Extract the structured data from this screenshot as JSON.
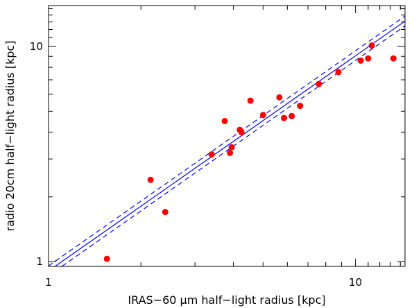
{
  "chart_data": {
    "type": "scatter",
    "title": "",
    "xlabel": "IRAS−60 μm half−light radius [kpc]",
    "ylabel": "radio 20cm half−light radius [kpc]",
    "xscale": "log",
    "yscale": "log",
    "xlim": [
      1,
      14.5
    ],
    "ylim": [
      0.95,
      15.5
    ],
    "grid": false,
    "x_tick_labels": [
      "1",
      "10"
    ],
    "y_tick_labels": [
      "1",
      "10"
    ],
    "marker_color": "#ff0000",
    "fit_color": "#0000ff",
    "points": [
      {
        "x": 1.55,
        "y": 1.03
      },
      {
        "x": 2.15,
        "y": 2.4
      },
      {
        "x": 2.4,
        "y": 1.7
      },
      {
        "x": 3.4,
        "y": 3.15
      },
      {
        "x": 3.75,
        "y": 4.5
      },
      {
        "x": 3.9,
        "y": 3.2
      },
      {
        "x": 3.95,
        "y": 3.4
      },
      {
        "x": 4.2,
        "y": 4.1
      },
      {
        "x": 4.25,
        "y": 4.0
      },
      {
        "x": 4.55,
        "y": 5.6
      },
      {
        "x": 5.0,
        "y": 4.8
      },
      {
        "x": 5.65,
        "y": 5.8
      },
      {
        "x": 5.85,
        "y": 4.65
      },
      {
        "x": 6.2,
        "y": 4.75
      },
      {
        "x": 6.6,
        "y": 5.3
      },
      {
        "x": 7.6,
        "y": 6.7
      },
      {
        "x": 8.8,
        "y": 7.6
      },
      {
        "x": 10.4,
        "y": 8.6
      },
      {
        "x": 11.0,
        "y": 8.8
      },
      {
        "x": 11.3,
        "y": 10.1
      },
      {
        "x": 13.3,
        "y": 8.8
      }
    ],
    "fit_lines": [
      {
        "style": "solid",
        "x": [
          1,
          14.5
        ],
        "y": [
          0.905,
          13.12
        ]
      },
      {
        "style": "dashed",
        "x": [
          1,
          14.5
        ],
        "y": [
          0.955,
          13.85
        ]
      },
      {
        "style": "dashed",
        "x": [
          1,
          14.5
        ],
        "y": [
          0.86,
          12.47
        ]
      }
    ]
  }
}
